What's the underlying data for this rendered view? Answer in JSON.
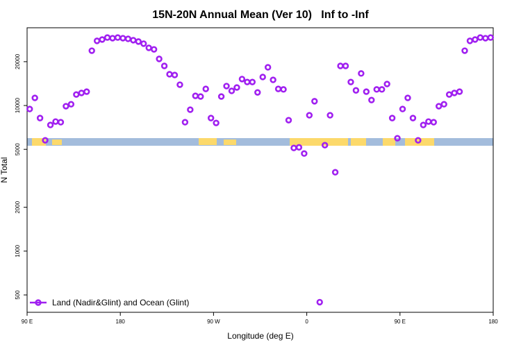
{
  "chart_data": {
    "type": "scatter",
    "title": "15N-20N Annual Mean (Ver 10)   Inf to -Inf",
    "x_label": "Longitude (deg E)",
    "y_label": "N Total",
    "series": [
      {
        "name": "Land (Nadir&Glint) and Ocean (Glint)",
        "color": "#a020f0",
        "x": [
          92.5,
          97.5,
          102.5,
          107.5,
          112.5,
          117.5,
          122.5,
          127.5,
          132.5,
          137.5,
          142.5,
          147.5,
          152.5,
          157.5,
          162.5,
          167.5,
          172.5,
          177.5,
          182.5,
          187.5,
          192.5,
          197.5,
          202.5,
          207.5,
          212.5,
          217.5,
          222.5,
          227.5,
          232.5,
          237.5,
          242.5,
          247.5,
          252.5,
          257.5,
          262.5,
          267.5,
          272.5,
          277.5,
          282.5,
          287.5,
          292.5,
          297.5,
          302.5,
          307.5,
          312.5,
          317.5,
          322.5,
          327.5,
          332.5,
          337.5,
          342.5,
          347.5,
          352.5,
          357.5,
          362.5,
          367.5,
          372.5,
          377.5,
          382.5,
          387.5,
          392.5,
          397.5,
          402.5,
          407.5,
          412.5,
          417.5,
          422.5,
          427.5,
          432.5,
          437.5,
          442.5,
          447.5,
          452.5,
          457.5,
          462.5,
          467.5,
          472.5,
          477.5,
          482.5,
          487.5,
          492.5,
          497.5,
          502.5,
          507.5,
          512.5,
          517.5,
          522.5,
          527.5,
          532.5,
          537.5
        ],
        "values": [
          9460,
          11280,
          8200,
          5770,
          7350,
          7760,
          7680,
          9890,
          10200,
          11900,
          12200,
          12450,
          23800,
          27800,
          28400,
          29300,
          29000,
          29300,
          29000,
          28700,
          28100,
          27500,
          26600,
          24900,
          24300,
          20900,
          18700,
          16400,
          16200,
          13900,
          7680,
          9360,
          11650,
          11530,
          13000,
          8200,
          7590,
          11530,
          13600,
          12600,
          13300,
          15200,
          14500,
          14500,
          12300,
          15700,
          18300,
          15000,
          13000,
          12900,
          7930,
          5110,
          5160,
          4680,
          8570,
          10700,
          446,
          5340,
          8570,
          3480,
          18700,
          18700,
          14500,
          12700,
          16600,
          12450,
          10900,
          12900,
          12900,
          14050,
          8200,
          5960,
          9460,
          11280,
          8200,
          5770,
          7350,
          7760,
          7680,
          9890,
          10200,
          11900,
          12200,
          12450,
          23800,
          27800,
          28400,
          29300,
          29000,
          29300
        ]
      }
    ],
    "xlim": [
      90,
      540
    ],
    "xticks": [
      {
        "value": 90,
        "label": "90 E"
      },
      180,
      {
        "value": 270,
        "label": "90 W"
      },
      {
        "value": 360,
        "label": "0"
      },
      {
        "value": 450,
        "label": "90 E"
      },
      {
        "value": 540,
        "label": "180"
      }
    ],
    "ylim": [
      380,
      34200
    ],
    "yticks": [
      500,
      1000,
      2000,
      5000,
      10000,
      20000
    ],
    "log_y": true,
    "legend": "bottom-left"
  }
}
